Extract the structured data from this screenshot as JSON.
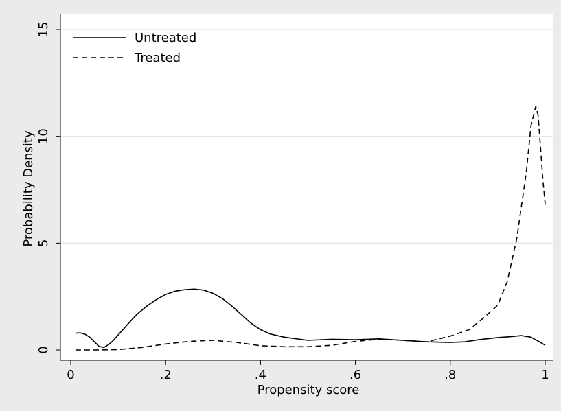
{
  "chart_data": {
    "type": "line",
    "title": "",
    "xlabel": "Propensity score",
    "ylabel": "Probability Density",
    "xlim": [
      0,
      1
    ],
    "ylim": [
      0,
      15
    ],
    "x_ticks": [
      {
        "value": 0,
        "label": "0"
      },
      {
        "value": 0.2,
        "label": ".2"
      },
      {
        "value": 0.4,
        "label": ".4"
      },
      {
        "value": 0.6,
        "label": ".6"
      },
      {
        "value": 0.8,
        "label": ".8"
      },
      {
        "value": 1,
        "label": "1"
      }
    ],
    "y_ticks": [
      {
        "value": 0,
        "label": "0"
      },
      {
        "value": 5,
        "label": "5"
      },
      {
        "value": 10,
        "label": "10"
      },
      {
        "value": 15,
        "label": "15"
      }
    ],
    "grid": "horizontal",
    "legend_position": "top-left",
    "background_color": "#ebebeb",
    "plot_background_color": "#ffffff",
    "gridline_color": "#e6e6e6",
    "series": [
      {
        "name": "Untreated",
        "line_style": "solid",
        "color": "#000000",
        "x": [
          0.01,
          0.02,
          0.03,
          0.04,
          0.05,
          0.06,
          0.07,
          0.08,
          0.09,
          0.1,
          0.12,
          0.14,
          0.16,
          0.18,
          0.2,
          0.22,
          0.24,
          0.26,
          0.28,
          0.3,
          0.32,
          0.34,
          0.36,
          0.38,
          0.4,
          0.42,
          0.45,
          0.5,
          0.55,
          0.6,
          0.65,
          0.7,
          0.75,
          0.8,
          0.83,
          0.86,
          0.9,
          0.93,
          0.95,
          0.97,
          0.99,
          1.0
        ],
        "y": [
          0.78,
          0.8,
          0.74,
          0.6,
          0.38,
          0.16,
          0.12,
          0.25,
          0.45,
          0.7,
          1.2,
          1.68,
          2.05,
          2.35,
          2.6,
          2.75,
          2.82,
          2.85,
          2.8,
          2.65,
          2.4,
          2.05,
          1.65,
          1.25,
          0.95,
          0.75,
          0.6,
          0.45,
          0.5,
          0.48,
          0.52,
          0.45,
          0.38,
          0.35,
          0.38,
          0.48,
          0.58,
          0.63,
          0.67,
          0.6,
          0.35,
          0.22
        ]
      },
      {
        "name": "Treated",
        "line_style": "dashed",
        "color": "#000000",
        "x": [
          0.01,
          0.05,
          0.1,
          0.15,
          0.2,
          0.25,
          0.3,
          0.35,
          0.4,
          0.45,
          0.5,
          0.55,
          0.6,
          0.65,
          0.7,
          0.75,
          0.8,
          0.84,
          0.87,
          0.9,
          0.92,
          0.94,
          0.96,
          0.97,
          0.98,
          0.985,
          0.99,
          0.995,
          1.0
        ],
        "y": [
          0.0,
          0.0,
          0.02,
          0.12,
          0.28,
          0.4,
          0.45,
          0.35,
          0.2,
          0.15,
          0.15,
          0.22,
          0.4,
          0.5,
          0.45,
          0.38,
          0.65,
          0.95,
          1.5,
          2.1,
          3.2,
          5.2,
          8.3,
          10.5,
          11.4,
          11.0,
          9.5,
          8.0,
          6.8
        ]
      }
    ]
  }
}
